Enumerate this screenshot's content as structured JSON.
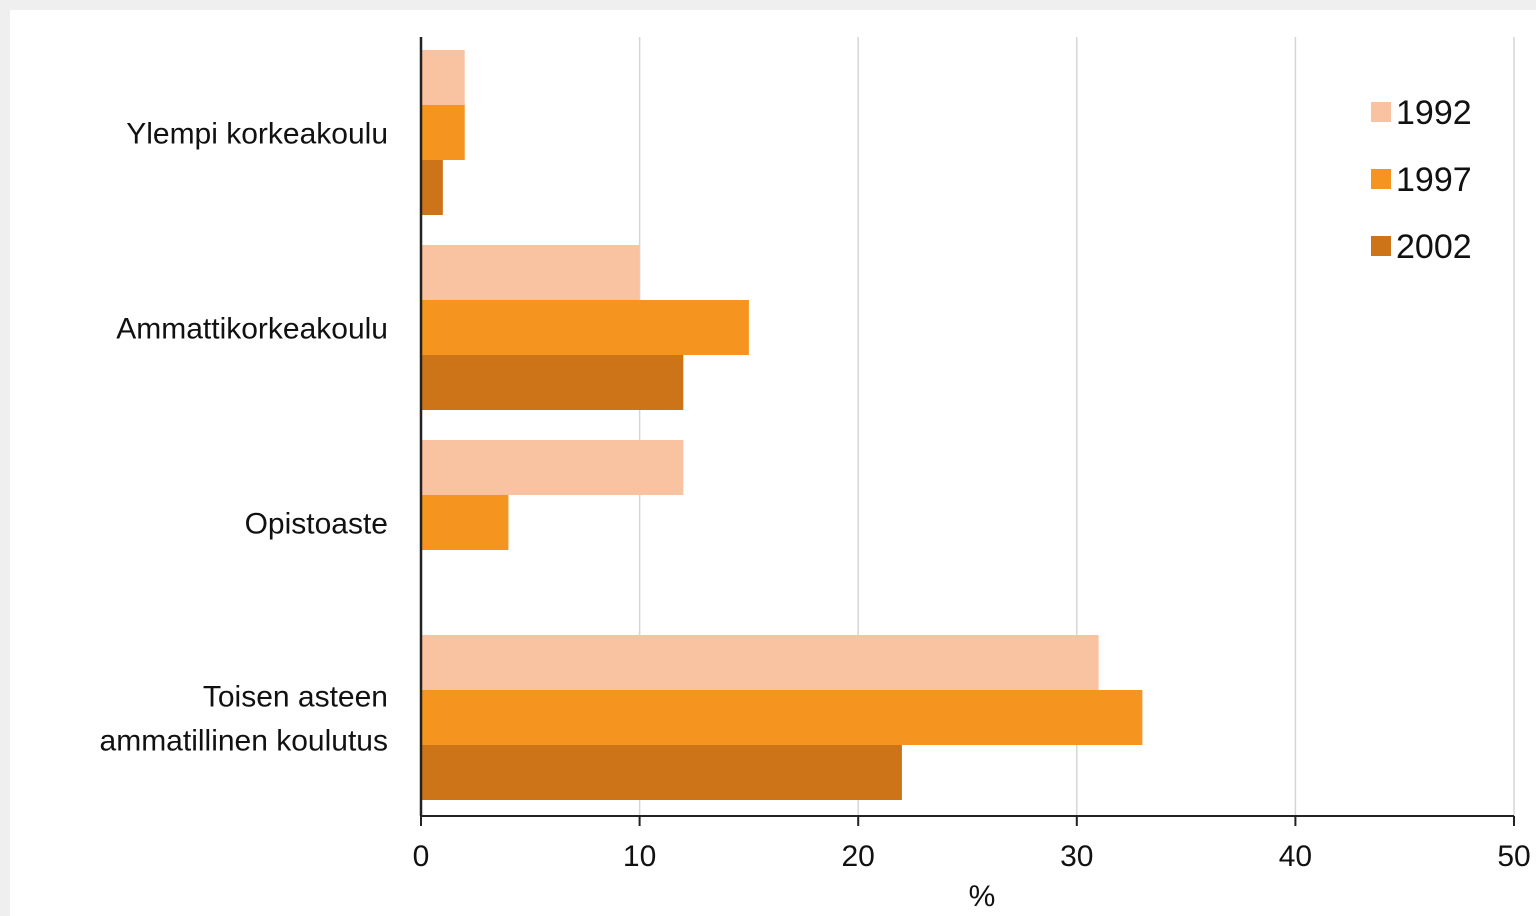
{
  "chart_data": {
    "type": "bar",
    "orientation": "horizontal",
    "categories": [
      [
        "Ylempi korkeakoulu"
      ],
      [
        "Ammattikorkeakoulu"
      ],
      [
        "Opistoaste"
      ],
      [
        "Toisen asteen",
        "ammatillinen koulutus"
      ]
    ],
    "series": [
      {
        "name": "1992",
        "color": "#f9c3a2",
        "values": [
          2,
          10,
          12,
          31
        ]
      },
      {
        "name": "1997",
        "color": "#f5941e",
        "values": [
          2,
          15,
          4,
          33
        ]
      },
      {
        "name": "2002",
        "color": "#cd7418",
        "values": [
          1,
          12,
          0,
          22
        ]
      }
    ],
    "xlabel": "%",
    "xlim": [
      0,
      50
    ],
    "xticks": [
      "0",
      "10",
      "20",
      "30",
      "40",
      "50"
    ],
    "grid": "vertical",
    "legend_position": "top-right"
  }
}
